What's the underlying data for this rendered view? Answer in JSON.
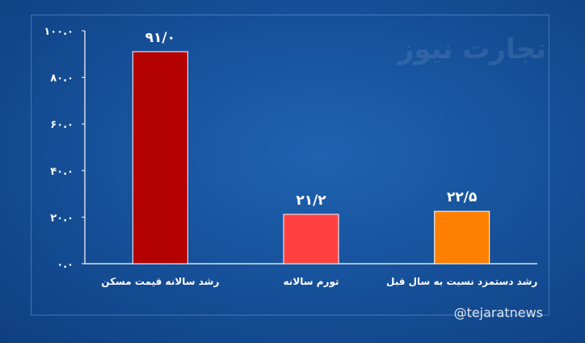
{
  "watermark": {
    "logo": "تجارت نیوز",
    "handle": "@tejaratnews"
  },
  "chart_data": {
    "type": "bar",
    "categories": [
      "رشد سالانه قیمت مسکن",
      "تورم سالانه",
      "رشد دستمزد نسبت به سال قبل"
    ],
    "values": [
      91.0,
      21.2,
      22.5
    ],
    "data_labels": [
      "۹۱/۰",
      "۲۱/۲",
      "۲۲/۵"
    ],
    "colors": [
      "#b30000",
      "#ff4040",
      "#ff8000"
    ],
    "ylim": [
      0,
      100
    ],
    "yticks": [
      0,
      20,
      40,
      60,
      80,
      100
    ],
    "ytick_labels": [
      "۰.۰",
      "۲۰.۰",
      "۴۰.۰",
      "۶۰.۰",
      "۸۰.۰",
      "۱۰۰.۰"
    ],
    "title": "",
    "xlabel": "",
    "ylabel": "",
    "grid": false
  }
}
